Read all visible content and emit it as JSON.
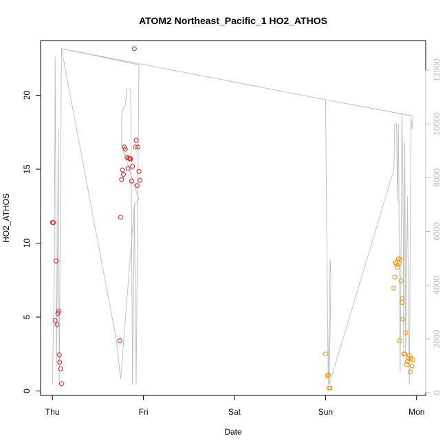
{
  "chart_data": {
    "type": "scatter",
    "title": "ATOM2 Northeast_Pacific_1 HO2_ATHOS",
    "xlabel": "Date",
    "ylabel": "HO2_ATHOS",
    "x_ticks": [
      {
        "label": "Thu",
        "x": 0
      },
      {
        "label": "Fri",
        "x": 1
      },
      {
        "label": "Sat",
        "x": 2
      },
      {
        "label": "Sun",
        "x": 3
      },
      {
        "label": "Mon",
        "x": 4
      }
    ],
    "xlim": [
      -0.13,
      4.1
    ],
    "ylim": [
      -0.3,
      23.7
    ],
    "y_ticks": [
      0,
      5,
      10,
      15,
      20
    ],
    "y2lim": [
      -100,
      13100
    ],
    "y2_ticks": [
      0,
      2000,
      4000,
      6000,
      8000,
      10000,
      12000
    ],
    "grid": false,
    "colors": {
      "red": "#e31a1c",
      "orange": "#ff8c00",
      "line": "#c0c0c0"
    },
    "series": [
      {
        "color": "red",
        "points": [
          [
            0.0,
            11.4
          ],
          [
            0.01,
            11.4
          ],
          [
            0.03,
            4.75
          ],
          [
            0.04,
            8.8
          ],
          [
            0.05,
            4.5
          ],
          [
            0.06,
            5.25
          ],
          [
            0.07,
            5.4
          ],
          [
            0.075,
            2.45
          ],
          [
            0.08,
            1.95
          ],
          [
            0.09,
            1.5
          ],
          [
            0.1,
            0.5
          ],
          [
            0.74,
            3.4
          ],
          [
            0.75,
            11.75
          ],
          [
            0.76,
            14.3
          ],
          [
            0.77,
            14.95
          ],
          [
            0.78,
            14.65
          ],
          [
            0.79,
            16.5
          ],
          [
            0.8,
            16.35
          ],
          [
            0.82,
            15.8
          ],
          [
            0.83,
            15.05
          ],
          [
            0.84,
            15.75
          ],
          [
            0.85,
            15.7
          ],
          [
            0.86,
            15.7
          ],
          [
            0.87,
            14.2
          ],
          [
            0.88,
            15.2
          ],
          [
            0.9,
            23.15
          ],
          [
            0.91,
            16.5
          ],
          [
            0.92,
            16.95
          ],
          [
            0.93,
            13.9
          ],
          [
            0.94,
            16.5
          ],
          [
            0.95,
            14.85
          ],
          [
            0.96,
            14.25
          ]
        ]
      },
      {
        "color": "orange",
        "points": [
          [
            3.0,
            2.5
          ],
          [
            3.02,
            1.05
          ],
          [
            3.03,
            1.08
          ],
          [
            3.04,
            0.2
          ],
          [
            3.05,
            0.2
          ],
          [
            3.75,
            6.95
          ],
          [
            3.76,
            7.7
          ],
          [
            3.77,
            8.7
          ],
          [
            3.78,
            8.55
          ],
          [
            3.79,
            8.35
          ],
          [
            3.8,
            8.95
          ],
          [
            3.81,
            8.65
          ],
          [
            3.815,
            3.4
          ],
          [
            3.82,
            8.9
          ],
          [
            3.83,
            7.45
          ],
          [
            3.84,
            6.0
          ],
          [
            3.845,
            6.25
          ],
          [
            3.85,
            4.85
          ],
          [
            3.86,
            2.5
          ],
          [
            3.87,
            2.5
          ],
          [
            3.88,
            3.95
          ],
          [
            3.89,
            1.8
          ],
          [
            3.9,
            2.0
          ],
          [
            3.91,
            2.2
          ],
          [
            3.92,
            2.4
          ],
          [
            3.93,
            1.3
          ],
          [
            3.94,
            2.2
          ],
          [
            3.95,
            1.7
          ],
          [
            3.96,
            2.1
          ]
        ]
      }
    ],
    "secondary_line": {
      "color": "line",
      "points": [
        [
          0.0,
          300
        ],
        [
          0.02,
          4200
        ],
        [
          0.03,
          12500
        ],
        [
          0.045,
          1000
        ],
        [
          0.055,
          5000
        ],
        [
          0.065,
          9800
        ],
        [
          0.075,
          300
        ],
        [
          0.1,
          12800
        ],
        [
          0.7,
          2000
        ],
        [
          0.75,
          500
        ],
        [
          0.9,
          7000
        ],
        [
          0.95,
          7200
        ],
        [
          0.76,
          9200
        ],
        [
          0.76,
          10300
        ],
        [
          0.78,
          10600
        ],
        [
          0.8,
          10700
        ],
        [
          0.82,
          11300
        ],
        [
          0.86,
          11300
        ],
        [
          0.88,
          300
        ],
        [
          0.9,
          7000
        ],
        [
          0.92,
          300
        ],
        [
          0.95,
          12200
        ],
        [
          0.1,
          12800
        ],
        [
          3.0,
          10900
        ],
        [
          3.03,
          300
        ],
        [
          3.05,
          5000
        ],
        [
          3.06,
          4300
        ],
        [
          3.04,
          300
        ],
        [
          3.75,
          8300
        ],
        [
          3.76,
          10000
        ],
        [
          3.78,
          10000
        ],
        [
          3.79,
          7100
        ],
        [
          3.8,
          10000
        ],
        [
          3.82,
          800
        ],
        [
          3.84,
          10400
        ],
        [
          3.85,
          8000
        ],
        [
          3.86,
          1300
        ],
        [
          3.87,
          9300
        ],
        [
          3.88,
          1500
        ],
        [
          3.9,
          7300
        ],
        [
          3.92,
          300
        ],
        [
          3.94,
          10200
        ],
        [
          3.95,
          9800
        ],
        [
          3.96,
          10300
        ],
        [
          3.0,
          10900
        ],
        [
          3.95,
          10300
        ]
      ]
    }
  }
}
